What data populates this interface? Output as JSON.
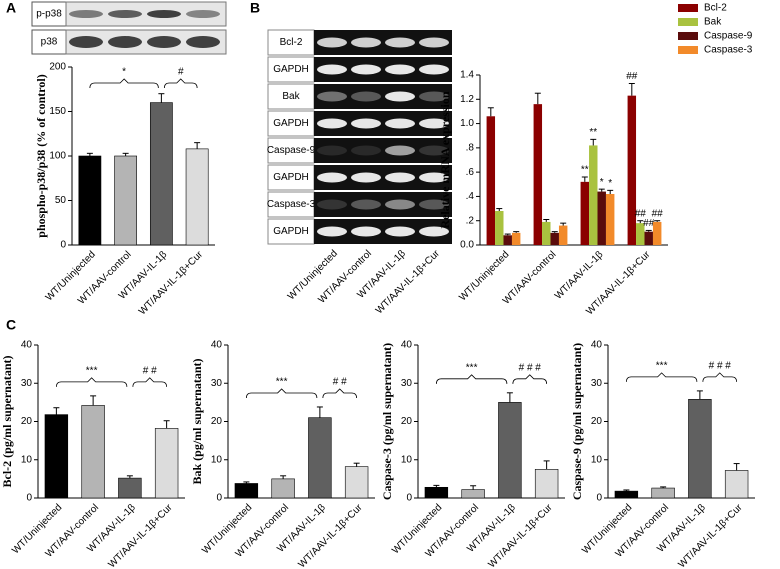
{
  "panels": [
    "A",
    "B",
    "C"
  ],
  "blots": {
    "A": [
      "p-p38",
      "p38"
    ],
    "B": [
      "Bcl-2",
      "GAPDH",
      "Bak",
      "GAPDH",
      "Caspase-9",
      "GAPDH",
      "Caspase-3",
      "GAPDH"
    ]
  },
  "chart_data": [
    {
      "type": "bar",
      "ylabel": "phospho-p38/p38  (% of control)",
      "categories": [
        "WT/Uninjected",
        "WT/AAV-control",
        "WT/AAV-IL-1β",
        "WT/AAV-IL-1β+Cur"
      ],
      "values": [
        100,
        100,
        160,
        108
      ],
      "errors": [
        3,
        3,
        10,
        7
      ],
      "colors": [
        "#000000",
        "#b4b4b4",
        "#606060",
        "#dcdcdc"
      ],
      "ylim": [
        0,
        200
      ],
      "yticks": [
        0,
        50,
        100,
        150,
        200
      ],
      "comparisons": [
        "*",
        "#"
      ]
    },
    {
      "type": "bar",
      "ylabel": "Relative mRNA expression",
      "categories": [
        "WT/Uninjected",
        "WT/AAV-control",
        "WT/AAV-IL-1β",
        "WT/AAV-IL-1β+Cur"
      ],
      "series": [
        {
          "name": "Bcl-2",
          "color": "#8b0000",
          "values": [
            1.06,
            1.16,
            0.52,
            1.23
          ],
          "errors": [
            0.07,
            0.09,
            0.04,
            0.1
          ],
          "annotations": [
            null,
            null,
            "**",
            "##"
          ]
        },
        {
          "name": "Bak",
          "color": "#a9c23f",
          "values": [
            0.28,
            0.19,
            0.82,
            0.18
          ],
          "errors": [
            0.02,
            0.02,
            0.05,
            0.02
          ],
          "annotations": [
            null,
            null,
            "**",
            "##"
          ]
        },
        {
          "name": "Caspase-9",
          "color": "#5a0c0c",
          "values": [
            0.08,
            0.1,
            0.44,
            0.11
          ],
          "errors": [
            0.01,
            0.01,
            0.02,
            0.01
          ],
          "annotations": [
            null,
            null,
            "*",
            "##"
          ]
        },
        {
          "name": "Caspase-3",
          "color": "#f28a2a",
          "values": [
            0.1,
            0.16,
            0.42,
            0.19
          ],
          "errors": [
            0.01,
            0.02,
            0.03,
            0.01
          ],
          "annotations": [
            null,
            null,
            "*",
            "##"
          ]
        }
      ],
      "ylim": [
        0,
        1.4
      ],
      "yticks": [
        {
          "value": 0,
          "label": "0.0"
        },
        {
          "value": 0.2,
          "label": ".2"
        },
        {
          "value": 0.4,
          "label": ".4"
        },
        {
          "value": 0.6,
          "label": ".6"
        },
        {
          "value": 0.8,
          "label": ".8"
        },
        {
          "value": 1,
          "label": "1.0"
        },
        {
          "value": 1.2,
          "label": "1.2"
        },
        {
          "value": 1.4,
          "label": "1.4"
        }
      ]
    },
    {
      "type": "bar",
      "ylabel": "Bcl-2 (pg/ml supernatant)",
      "categories": [
        "WT/Uninjected",
        "WT/AAV-control",
        "WT/AAV-IL-1β",
        "WT/AAV-IL-1β+Cur"
      ],
      "values": [
        21.8,
        24.2,
        5.2,
        18.2
      ],
      "errors": [
        1.8,
        2.5,
        0.6,
        2.0
      ],
      "colors": [
        "#000000",
        "#b4b4b4",
        "#606060",
        "#dcdcdc"
      ],
      "ylim": [
        0,
        40
      ],
      "yticks": [
        0,
        10,
        20,
        30,
        40
      ],
      "comparisons": [
        "***",
        "# #"
      ]
    },
    {
      "type": "bar",
      "ylabel": "Bak (pg/ml supernatant)",
      "categories": [
        "WT/Uninjected",
        "WT/AAV-control",
        "WT/AAV-IL-1β",
        "WT/AAV-IL-1β+Cur"
      ],
      "values": [
        3.8,
        5.0,
        21.0,
        8.2
      ],
      "errors": [
        0.4,
        0.8,
        2.8,
        0.9
      ],
      "colors": [
        "#000000",
        "#b4b4b4",
        "#606060",
        "#dcdcdc"
      ],
      "ylim": [
        0,
        40
      ],
      "yticks": [
        0,
        10,
        20,
        30,
        40
      ],
      "comparisons": [
        "***",
        "# #"
      ]
    },
    {
      "type": "bar",
      "ylabel": "Caspase-3 (pg/ml supernatant)",
      "categories": [
        "WT/Uninjected",
        "WT/AAV-control",
        "WT/AAV-IL-1β",
        "WT/AAV-IL-1β+Cur"
      ],
      "values": [
        2.8,
        2.2,
        25.0,
        7.5
      ],
      "errors": [
        0.5,
        1.0,
        2.5,
        2.2
      ],
      "colors": [
        "#000000",
        "#b4b4b4",
        "#606060",
        "#dcdcdc"
      ],
      "ylim": [
        0,
        40
      ],
      "yticks": [
        0,
        10,
        20,
        30,
        40
      ],
      "comparisons": [
        "***",
        "# # #"
      ]
    },
    {
      "type": "bar",
      "ylabel": "Caspase-9 (pg/ml supernatant)",
      "categories": [
        "WT/Uninjected",
        "WT/AAV-control",
        "WT/AAV-IL-1β",
        "WT/AAV-IL-1β+Cur"
      ],
      "values": [
        1.8,
        2.6,
        25.8,
        7.2
      ],
      "errors": [
        0.3,
        0.3,
        2.2,
        1.8
      ],
      "colors": [
        "#000000",
        "#b4b4b4",
        "#606060",
        "#dcdcdc"
      ],
      "ylim": [
        0,
        40
      ],
      "yticks": [
        0,
        10,
        20,
        30,
        40
      ],
      "comparisons": [
        "***",
        "# # #"
      ]
    }
  ]
}
